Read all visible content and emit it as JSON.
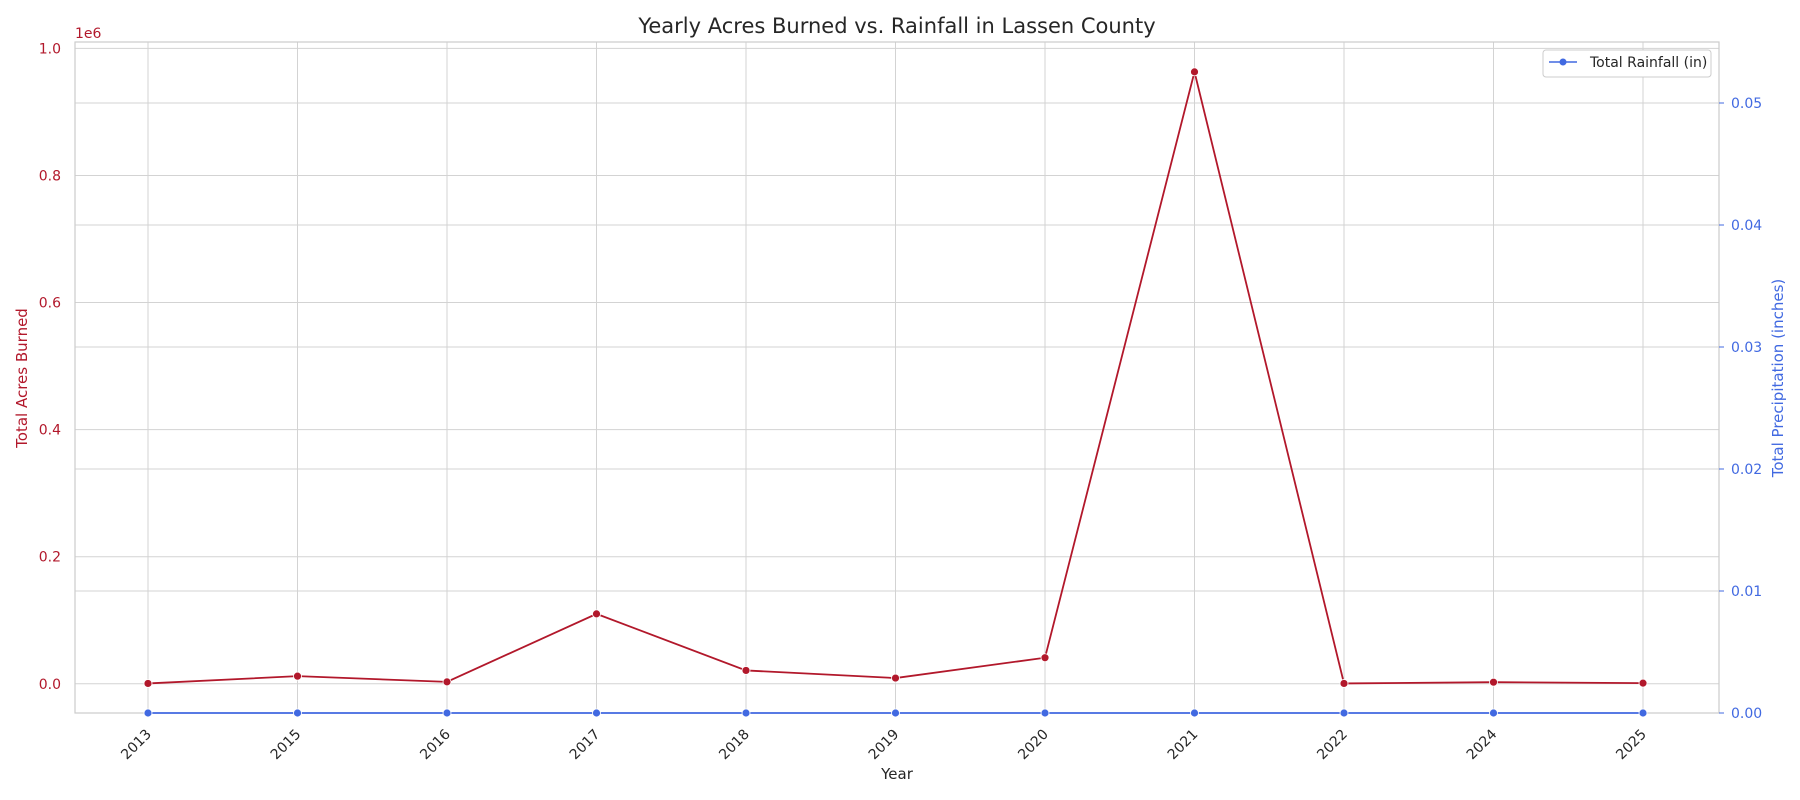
{
  "chart_data": {
    "type": "line",
    "title": "Yearly Acres Burned vs. Rainfall in Lassen County",
    "xlabel": "Year",
    "ylabel_left": "Total Acres Burned",
    "ylabel_right": "Total Precipitation (inches)",
    "left_axis_offset_label": "1e6",
    "categories": [
      "2013",
      "2015",
      "2016",
      "2017",
      "2018",
      "2019",
      "2020",
      "2021",
      "2022",
      "2024",
      "2025"
    ],
    "left_ylim": [
      -46000,
      1010000
    ],
    "left_yticks": [
      0,
      200000,
      400000,
      600000,
      800000,
      1000000
    ],
    "left_ytick_labels": [
      "0.0",
      "0.2",
      "0.4",
      "0.6",
      "0.8",
      "1.0"
    ],
    "right_ylim": [
      0,
      0.055
    ],
    "right_yticks": [
      0,
      0.01,
      0.02,
      0.03,
      0.04,
      0.05
    ],
    "right_ytick_labels": [
      "0.00",
      "0.01",
      "0.02",
      "0.03",
      "0.04",
      "0.05"
    ],
    "grid": true,
    "legend": {
      "placement": "top-right",
      "entries": [
        "Total Rainfall (in)"
      ]
    },
    "series": [
      {
        "name": "Total Acres Burned",
        "axis": "left",
        "color": "#b2182b",
        "values": [
          500,
          12000,
          3000,
          110000,
          21000,
          9000,
          41000,
          963000,
          500,
          2500,
          1000
        ]
      },
      {
        "name": "Total Rainfall (in)",
        "axis": "right",
        "color": "#4169e1",
        "values": [
          0,
          0,
          0,
          0,
          0,
          0,
          0,
          0,
          0,
          0,
          0
        ]
      }
    ]
  }
}
